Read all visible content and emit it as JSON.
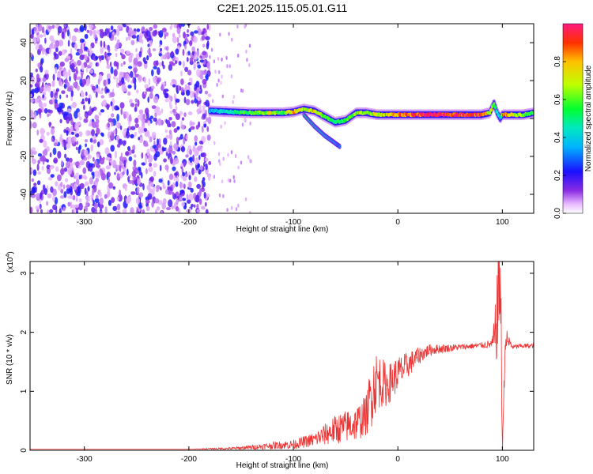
{
  "title": "C2E1.2025.115.05.01.G11",
  "chart_data": [
    {
      "type": "heatmap",
      "xlabel": "Height of straight line (km)",
      "ylabel": "Frequency (Hz)",
      "xlim": [
        -352,
        130
      ],
      "ylim": [
        -50,
        50
      ],
      "xticks": [
        -300,
        -200,
        -100,
        0,
        100
      ],
      "yticks": [
        -40,
        -20,
        0,
        20,
        40
      ],
      "colorbar": {
        "label": "Normalized spectral amplitude",
        "range": [
          0,
          1
        ],
        "ticks": [
          "0.0",
          "0.2",
          "0.4",
          "0.6",
          "0.8"
        ],
        "tick_values": [
          0.0,
          0.2,
          0.4,
          0.6,
          0.8
        ]
      },
      "noise_region_xlim": [
        -352,
        -180
      ],
      "ridge": {
        "x": [
          -180,
          -160,
          -140,
          -120,
          -110,
          -100,
          -90,
          -80,
          -70,
          -60,
          -50,
          -40,
          -30,
          -20,
          0,
          20,
          40,
          60,
          80,
          88,
          92,
          95,
          98,
          100,
          105,
          110,
          120,
          130
        ],
        "freq": [
          4,
          3.5,
          3,
          3,
          3,
          3.5,
          5,
          4,
          1,
          -2,
          -1,
          3,
          3,
          2,
          2,
          2,
          2,
          2,
          2,
          3,
          8,
          3,
          0,
          2,
          2,
          2,
          2,
          3
        ],
        "amp": [
          0.35,
          0.45,
          0.6,
          0.7,
          0.55,
          0.8,
          0.6,
          0.75,
          0.55,
          0.5,
          0.55,
          0.6,
          0.65,
          0.7,
          0.8,
          0.95,
          1.0,
          0.95,
          0.9,
          0.7,
          0.6,
          0.5,
          0.3,
          0.8,
          0.85,
          0.7,
          0.6,
          0.55
        ]
      },
      "branch": {
        "x": [
          -90,
          -80,
          -70,
          -60,
          -55
        ],
        "freq": [
          2,
          -4,
          -9,
          -13,
          -15
        ],
        "amp": [
          0.5,
          0.45,
          0.4,
          0.35,
          0.3
        ]
      }
    },
    {
      "type": "line",
      "xlabel": "Height of straight line (km)",
      "ylabel": "SNR (10 * v/v)",
      "yscale_note": "(x10",
      "yscale_exp": "4",
      "multiplier": 10000,
      "xlim": [
        -352,
        130
      ],
      "ylim": [
        0,
        3.2
      ],
      "xticks": [
        -300,
        -200,
        -100,
        0,
        100
      ],
      "yticks": [
        0,
        1,
        2,
        3
      ],
      "series": [
        {
          "color": "#ee3333",
          "x": [
            -352,
            -250,
            -200,
            -160,
            -140,
            -120,
            -100,
            -80,
            -60,
            -40,
            -30,
            -25,
            -20,
            -10,
            0,
            10,
            20,
            30,
            40,
            60,
            80,
            90,
            93,
            96,
            98,
            100,
            103,
            110,
            120,
            130
          ],
          "y": [
            0.02,
            0.02,
            0.02,
            0.03,
            0.05,
            0.08,
            0.1,
            0.18,
            0.35,
            0.45,
            0.6,
            1.0,
            1.2,
            1.1,
            1.3,
            1.45,
            1.6,
            1.7,
            1.72,
            1.75,
            1.78,
            1.8,
            1.9,
            2.6,
            3.1,
            0.0,
            1.9,
            1.75,
            1.77,
            1.77
          ],
          "noise": [
            0,
            0,
            0,
            0.02,
            0.04,
            0.06,
            0.08,
            0.12,
            0.25,
            0.3,
            0.35,
            0.6,
            0.5,
            0.35,
            0.3,
            0.22,
            0.15,
            0.1,
            0.08,
            0.05,
            0.05,
            0.08,
            0.5,
            1.0,
            1.2,
            0.2,
            0.2,
            0.04,
            0.04,
            0.04
          ]
        }
      ]
    }
  ]
}
